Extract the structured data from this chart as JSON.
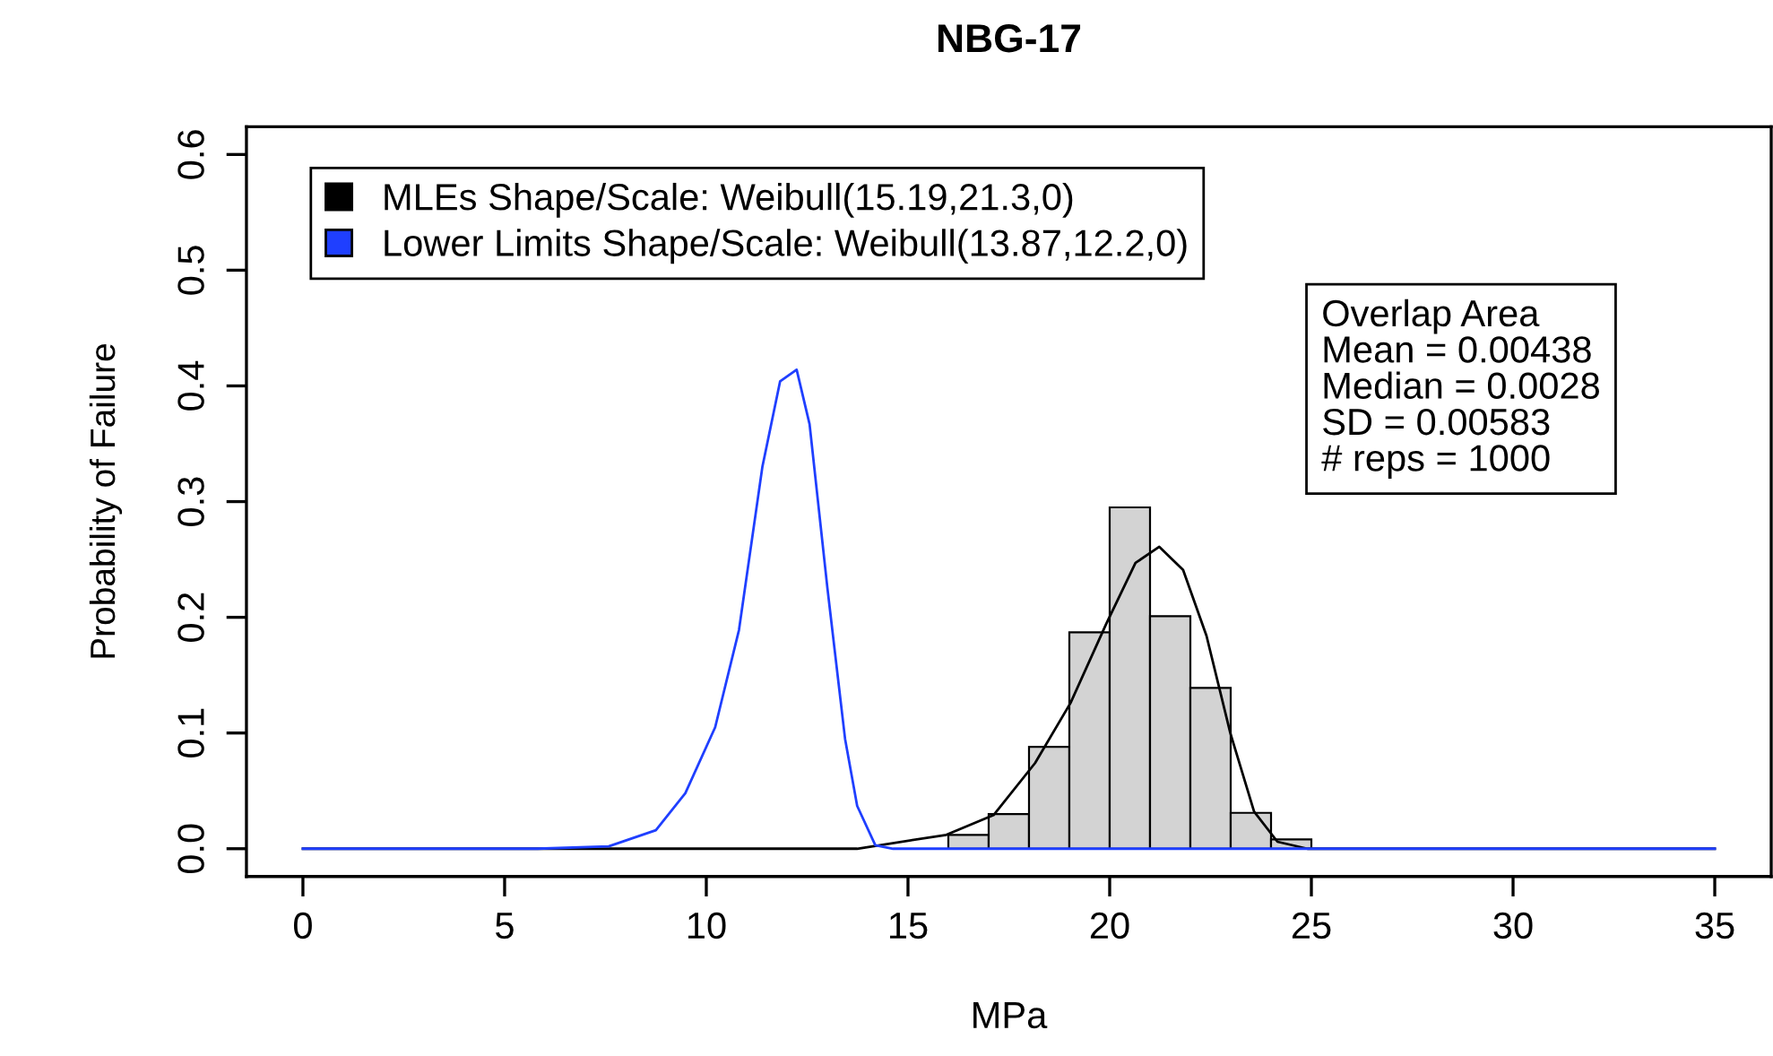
{
  "chart_data": {
    "type": "histogram",
    "title": "NBG-17",
    "xlabel": "MPa",
    "ylabel": "Probability of Failure",
    "bins": [
      16,
      17,
      18,
      19,
      20,
      21,
      22,
      23,
      24,
      25
    ],
    "values": [
      0.012,
      0.03,
      0.088,
      0.187,
      0.295,
      0.201,
      0.139,
      0.031,
      0.008
    ],
    "color": "#d3d3d3",
    "series": [
      {
        "type": "line",
        "name": "MLEs Shape/Scale: Weibull(15.19,21.3,0)",
        "color": "#000000",
        "x": [
          0,
          5,
          10,
          13.74,
          15.95,
          17.12,
          18.15,
          19.03,
          19.91,
          20.64,
          21.23,
          21.82,
          22.4,
          22.99,
          23.58,
          24.16,
          24.9,
          30,
          35
        ],
        "values": [
          0,
          0,
          0,
          0,
          0.012,
          0.029,
          0.074,
          0.126,
          0.194,
          0.247,
          0.261,
          0.241,
          0.184,
          0.1,
          0.032,
          0.006,
          0,
          0,
          0
        ]
      },
      {
        "type": "line",
        "name": "Lower Limits Shape/Scale: Weibull(13.87,12.2,0)",
        "color": "#1f3fff",
        "x": [
          0,
          5.81,
          7.58,
          8.75,
          9.48,
          10.22,
          10.81,
          11.39,
          11.83,
          12.24,
          12.56,
          13.0,
          13.44,
          13.74,
          14.19,
          14.63,
          20,
          25,
          30,
          35
        ],
        "values": [
          0,
          0,
          0.002,
          0.016,
          0.048,
          0.105,
          0.189,
          0.33,
          0.404,
          0.414,
          0.367,
          0.226,
          0.095,
          0.037,
          0.003,
          0,
          0,
          0,
          0,
          0
        ]
      }
    ],
    "annotations": [
      "Overlap Area",
      "Mean = 0.00438",
      "Median = 0.0028",
      "SD = 0.00583",
      "# reps = 1000"
    ],
    "xlim": [
      -1.4,
      36.4
    ],
    "ylim": [
      -0.024,
      0.624
    ],
    "xticks": [
      0,
      5,
      10,
      15,
      20,
      25,
      30,
      35
    ],
    "yticks": [
      {
        "value": 0,
        "label": "0.0"
      },
      {
        "value": 0.1,
        "label": "0.1"
      },
      {
        "value": 0.2,
        "label": "0.2"
      },
      {
        "value": 0.3,
        "label": "0.3"
      },
      {
        "value": 0.4,
        "label": "0.4"
      },
      {
        "value": 0.5,
        "label": "0.5"
      },
      {
        "value": 0.6,
        "label": "0.6"
      }
    ],
    "legend": "top left",
    "grid": false
  }
}
